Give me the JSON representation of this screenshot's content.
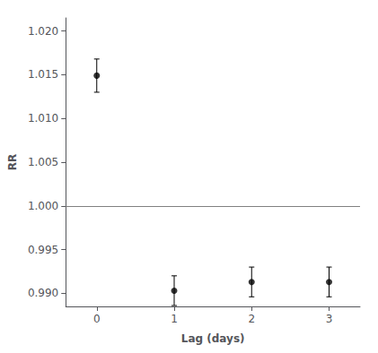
{
  "chart_data": {
    "type": "scatter",
    "xlabel": "Lag (days)",
    "ylabel": "RR",
    "x": [
      0,
      1,
      2,
      3
    ],
    "values": [
      1.0149,
      0.9903,
      0.9913,
      0.9913
    ],
    "upper": [
      1.0168,
      0.992,
      0.993,
      0.993
    ],
    "lower": [
      1.013,
      0.9886,
      0.9896,
      0.9896
    ],
    "hline": {
      "y": 1.0,
      "color": "#808080"
    },
    "color": "#000000",
    "marker": "circle",
    "xlim": [
      -0.4,
      3.4
    ],
    "xticks": [
      0,
      1,
      2,
      3
    ],
    "ylim": [
      0.9885,
      1.0215
    ],
    "yticks": [
      {
        "value": 0.99,
        "label": "0.990"
      },
      {
        "value": 0.995,
        "label": "0.995"
      },
      {
        "value": 1.0,
        "label": "1.000"
      },
      {
        "value": 1.005,
        "label": "1.005"
      },
      {
        "value": 1.01,
        "label": "1.010"
      },
      {
        "value": 1.015,
        "label": "1.015"
      },
      {
        "value": 1.02,
        "label": "1.020"
      }
    ],
    "grid": false
  }
}
